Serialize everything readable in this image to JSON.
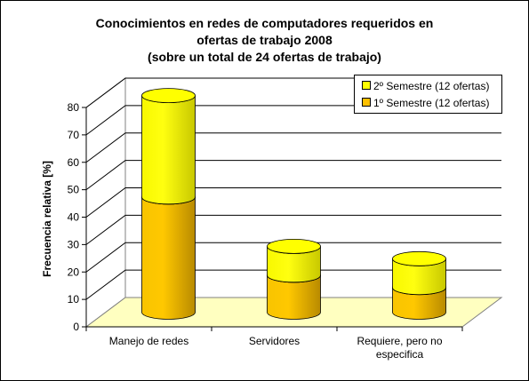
{
  "chart_data": {
    "type": "bar",
    "stacked": true,
    "three_d": true,
    "title": [
      "Conocimientos en redes de computadores requeridos en",
      "ofertas de trabajo 2008",
      "(sobre un total de 24 ofertas de trabajo)"
    ],
    "xlabel": "",
    "ylabel": "Frecuencia relativa [%]",
    "ylim": [
      0,
      80
    ],
    "yticks": [
      0,
      10,
      20,
      30,
      40,
      50,
      60,
      70,
      80
    ],
    "grid": true,
    "legend_position": "top-right",
    "categories": [
      [
        "Manejo de redes"
      ],
      [
        "Servidores"
      ],
      [
        "Requiere, pero no",
        "especifica"
      ]
    ],
    "series": [
      {
        "name": "1º Semestre (12 ofertas)",
        "values": [
          42,
          13.5,
          9
        ],
        "color": "#ffc000"
      },
      {
        "name": "2º Semestre (12 ofertas)",
        "values": [
          37,
          10.5,
          10.5
        ],
        "color": "#ffff00"
      }
    ],
    "floor_color": "#ffffc0"
  }
}
